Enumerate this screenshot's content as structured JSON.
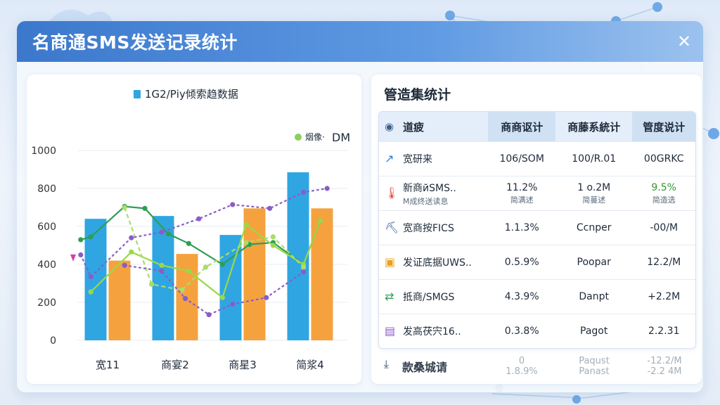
{
  "window": {
    "title": "名商通SMS发送记录统计",
    "close_icon": "close-icon"
  },
  "chart_data": {
    "type": "bar",
    "title": "1G2/Ріу倾索趋数据",
    "categories": [
      "宽11",
      "商宴2",
      "商星3",
      "简浆4"
    ],
    "ylim": [
      0,
      1000
    ],
    "yticks": [
      0,
      200,
      400,
      600,
      800,
      1000
    ],
    "legend": {
      "label": "烟像·",
      "extra": "DM",
      "placement": "top-right",
      "color": "#8ad05a"
    },
    "bar_series": [
      {
        "color": "#2fa6e2",
        "values": [
          640,
          655,
          555,
          885
        ]
      },
      {
        "color": "#f5a23e",
        "values": [
          420,
          455,
          695,
          695
        ]
      }
    ],
    "line_series": [
      {
        "color": "#2f9e55",
        "style": "solid",
        "x": [
          0.0,
          0.15,
          0.65,
          0.95,
          1.3,
          1.6,
          2.1,
          2.5,
          2.85,
          3.3,
          3.55
        ],
        "y": [
          530,
          545,
          705,
          695,
          560,
          510,
          400,
          505,
          515,
          400,
          630
        ]
      },
      {
        "color": "#9ad84a",
        "style": "solid",
        "x": [
          0.15,
          0.75,
          1.2,
          1.6,
          2.1,
          2.45,
          2.85,
          3.3,
          3.55
        ],
        "y": [
          255,
          465,
          395,
          365,
          225,
          610,
          500,
          400,
          630
        ]
      },
      {
        "color": "#a8de6a",
        "style": "dashed",
        "x": [
          0.65,
          1.05,
          1.5,
          1.85,
          2.45,
          2.85,
          3.3
        ],
        "y": [
          700,
          295,
          265,
          385,
          515,
          545,
          385
        ]
      },
      {
        "color": "#8a5cc9",
        "style": "dotted",
        "x": [
          0.0,
          0.15,
          0.75,
          1.2,
          1.75,
          2.25,
          2.8,
          3.3,
          3.65
        ],
        "y": [
          450,
          335,
          540,
          570,
          640,
          715,
          695,
          780,
          800
        ]
      },
      {
        "color": "#8a5cc9",
        "style": "dotted",
        "x": [
          0.65,
          1.2,
          1.55,
          1.9,
          2.25,
          2.75,
          3.3
        ],
        "y": [
          395,
          365,
          220,
          135,
          190,
          225,
          360
        ]
      }
    ],
    "y_marker_color": "#d040b0"
  },
  "table": {
    "title": "管造集统计",
    "header_icon": "globe-icon",
    "headers": [
      "道疲",
      "商商讴计",
      "商藤系統计",
      "管度说计"
    ],
    "rows": [
      {
        "icon": "trend-icon",
        "icon_color": "#2a7fd4",
        "name": "宽研来",
        "name_sub": "",
        "v1": "106/SOM",
        "v1_sub": "",
        "v1_green": false,
        "v2": "100/R.01",
        "v2_sub": "",
        "v3": "00GRKC",
        "v3_sub": "",
        "v3_green": false
      },
      {
        "icon": "thermometer-icon",
        "icon_color": "#d9443a",
        "name": "新商йSMS..",
        "name_sub": "M成终送读息",
        "v1": "11.2%",
        "v1_sub": "简满述",
        "v1_green": false,
        "v2": "1 o.2M",
        "v2_sub": "简蔓述",
        "v3": "9.5%",
        "v3_sub": "简造选",
        "v3_green": true
      },
      {
        "icon": "pickaxe-icon",
        "icon_color": "#2a4f8a",
        "name": "宽商按FICS",
        "name_sub": "",
        "v1": "1.1.3%",
        "v1_sub": "",
        "v1_green": false,
        "v2": "Ccnper",
        "v2_sub": "",
        "v3": "-00/M",
        "v3_sub": "",
        "v3_green": false
      },
      {
        "icon": "alert-icon",
        "icon_color": "#e9a21b",
        "name": "发证底据UWS..",
        "name_sub": "",
        "v1": "0.5.9%",
        "v1_sub": "",
        "v1_green": false,
        "v2": "Poopar",
        "v2_sub": "",
        "v3": "12.2/M",
        "v3_sub": "",
        "v3_green": false
      },
      {
        "icon": "shuffle-icon",
        "icon_color": "#2f9e55",
        "name": "抵商/SMGS",
        "name_sub": "",
        "v1": "4.3.9%",
        "v1_sub": "",
        "v1_green": false,
        "v2": "Danpt",
        "v2_sub": "",
        "v3": "+2.2M",
        "v3_sub": "",
        "v3_green": false
      },
      {
        "icon": "chart-icon",
        "icon_color": "#8a5cc9",
        "name": "发高茯宍16..",
        "name_sub": "",
        "v1": "0.3.8%",
        "v1_sub": "",
        "v1_green": false,
        "v2": "Pagot",
        "v2_sub": "",
        "v3": "2.2.31",
        "v3_sub": "",
        "v3_green": false
      }
    ],
    "footer": {
      "icon": "download-icon",
      "label": "款桑城请",
      "v1": "0",
      "v1_sub": "1.8.9%",
      "v2": "Paqust",
      "v2_sub": "Panast",
      "v3": "-12.2/M",
      "v3_sub": "-2.2 4M"
    }
  }
}
